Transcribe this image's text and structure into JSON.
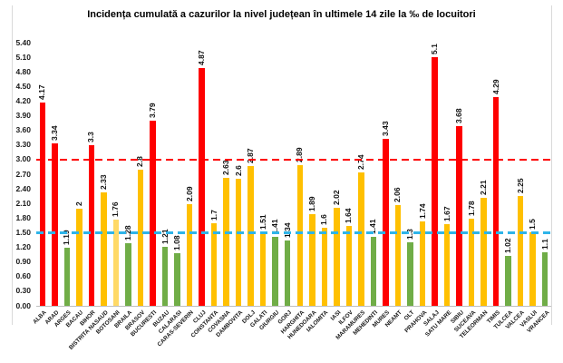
{
  "chart_data": {
    "type": "bar",
    "title": "Incidența cumulată a cazurilor la nivel județean în ultimele 14 zile la ‰ de locuitori",
    "categories": [
      "ALBA",
      "ARAD",
      "ARGES",
      "BACAU",
      "BIHOR",
      "BISTRITA NASAUD",
      "BOTOSANI",
      "BRAILA",
      "BRASOV",
      "BUCURESTI",
      "BUZAU",
      "CALARASI",
      "CARAS-SEVERIN",
      "CLUJ",
      "CONSTANTA",
      "COVASNA",
      "DAMBOVITA",
      "DOLJ",
      "GALATI",
      "GIURGIU",
      "GORJ",
      "HARGHITA",
      "HUNEDOARA",
      "IALOMITA",
      "IASI",
      "ILFOV",
      "MARAMURES",
      "MEHEDINTI",
      "MURES",
      "NEAMT",
      "OLT",
      "PRAHOVA",
      "SALAJ",
      "SATU MARE",
      "SIBIU",
      "SUCEAVA",
      "TELEORMAN",
      "TIMIS",
      "TULCEA",
      "VALCEA",
      "VASLUI",
      "VRANCEA"
    ],
    "values": [
      4.17,
      3.34,
      1.19,
      2,
      3.3,
      2.33,
      1.76,
      1.28,
      2.8,
      3.79,
      1.21,
      1.08,
      2.09,
      4.87,
      1.7,
      2.63,
      2.6,
      2.87,
      1.51,
      1.41,
      1.34,
      2.89,
      1.89,
      1.6,
      2.02,
      1.64,
      2.74,
      1.41,
      3.43,
      2.06,
      1.3,
      1.74,
      5.1,
      1.67,
      3.68,
      1.78,
      2.21,
      4.29,
      1.02,
      2.25,
      1.5,
      1.1
    ],
    "value_labels": [
      "4.17",
      "3.34",
      "1.19",
      "2",
      "3.3",
      "2.33",
      "1.76",
      "1.28",
      "2.8",
      "3.79",
      "1.21",
      "1.08",
      "2.09",
      "4.87",
      "1.7",
      "2.63",
      "2.6",
      "2.87",
      "1.51",
      "1.41",
      "1.34",
      "2.89",
      "1.89",
      "1.6",
      "2.02",
      "1.64",
      "2.74",
      "1.41",
      "3.43",
      "2.06",
      "1.3",
      "1.74",
      "5.1",
      "1.67",
      "3.68",
      "1.78",
      "2.21",
      "4.29",
      "1.02",
      "2.25",
      "1.5",
      "1.1"
    ],
    "bar_colors": [
      "red",
      "red",
      "green",
      "yellow",
      "red",
      "yellow",
      "light_yellow",
      "green",
      "yellow",
      "red",
      "green",
      "green",
      "yellow",
      "red",
      "yellow",
      "yellow",
      "yellow",
      "yellow",
      "yellow",
      "green",
      "green",
      "yellow",
      "yellow",
      "yellow",
      "yellow",
      "yellow",
      "yellow",
      "green",
      "red",
      "yellow",
      "green",
      "yellow",
      "red",
      "yellow",
      "red",
      "yellow",
      "yellow",
      "red",
      "green",
      "yellow",
      "yellow",
      "green"
    ],
    "palette": {
      "red": "#fe0000",
      "yellow": "#ffc000",
      "light_yellow": "#ffd966",
      "green": "#70ad47"
    },
    "y_tick_labels": [
      "5.40",
      "5.10",
      "4.80",
      "4.50",
      "4.20",
      "3.90",
      "3.60",
      "3.30",
      "3.00",
      "2.70",
      "2.40",
      "2.10",
      "1.80",
      "1.50",
      "1.20",
      "0.90",
      "0.60",
      "0.30",
      "0.00"
    ],
    "ylim": [
      0,
      5.4
    ],
    "y_tick_step": 0.3,
    "reference_lines": [
      {
        "name": "red-threshold-line",
        "value": 3.0,
        "color": "#fe0000"
      },
      {
        "name": "blue-threshold-line",
        "value": 1.5,
        "color": "#2eb4e9"
      }
    ],
    "grid": false,
    "legend": "none",
    "xlabel": "",
    "ylabel": ""
  }
}
